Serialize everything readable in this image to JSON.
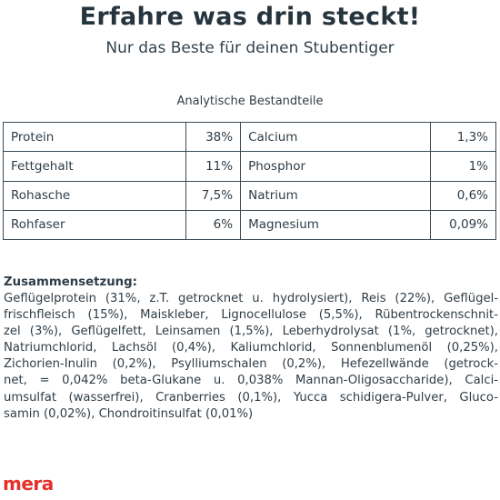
{
  "header": {
    "title": "Erfahre was drin steckt!",
    "subtitle": "Nur das Beste für deinen Stubentiger"
  },
  "table": {
    "title": "Analytische Bestandteile",
    "rows": [
      {
        "left_label": "Protein",
        "left_value": "38%",
        "right_label": "Calcium",
        "right_value": "1,3%"
      },
      {
        "left_label": "Fettgehalt",
        "left_value": "11%",
        "right_label": "Phosphor",
        "right_value": "1%"
      },
      {
        "left_label": "Rohasche",
        "left_value": "7,5%",
        "right_label": "Natrium",
        "right_value": "0,6%"
      },
      {
        "left_label": "Rohfaser",
        "left_value": "6%",
        "right_label": "Magnesium",
        "right_value": "0,09%"
      }
    ]
  },
  "composition": {
    "heading": "Zusammensetzung:",
    "lines": [
      "Geflügelprotein (31%, z.T. getrocknet u. hydrolysiert), Reis (22%), Geflügel-",
      "frischfleisch (15%), Maiskleber, Lignocellulose (5,5%), Rübentrockenschnit-",
      "zel (3%), Geflügelfett, Leinsamen (1,5%), Leberhydrolysat (1%, getrocknet),",
      "Natriumchlorid, Lachsöl (0,4%), Kaliumchlorid, Sonnenblumenöl (0,25%),",
      "Zichorien-Inulin (0,2%), Psylliumschalen (0,2%), Hefezellwände (getrock-",
      "net, = 0,042% beta-Glukane u. 0,038% Mannan-Oligosaccharide), Calci-",
      "umsulfat (wasserfrei), Cranberries (0,1%), Yucca schidigera-Pulver, Gluco-",
      "samin (0,02%), Chondroitinsulfat (0,01%)"
    ]
  },
  "brand": {
    "logo_text": "mera",
    "color": "#e3312c"
  }
}
